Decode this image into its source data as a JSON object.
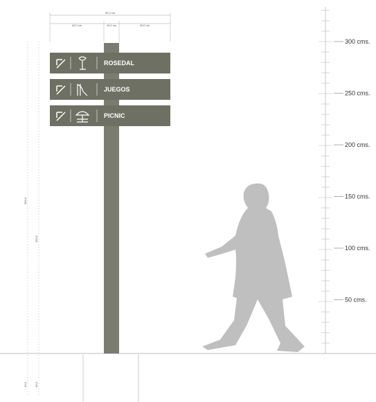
{
  "dimensions": {
    "total_width": "90,0 cm",
    "left_width": "40,0 cm",
    "pole_width": "10,0 cm",
    "right_width": "40,0 cm",
    "total_height": "300,0",
    "pole_height": "150,0",
    "base": "40,0"
  },
  "signs": [
    {
      "label": "ROSEDAL"
    },
    {
      "label": "JUEGOS"
    },
    {
      "label": "PICNIC"
    }
  ],
  "scale": [
    "300 cms.",
    "250 cms.",
    "200 cms.",
    "150 cms.",
    "100 cms.",
    "50 cms."
  ]
}
